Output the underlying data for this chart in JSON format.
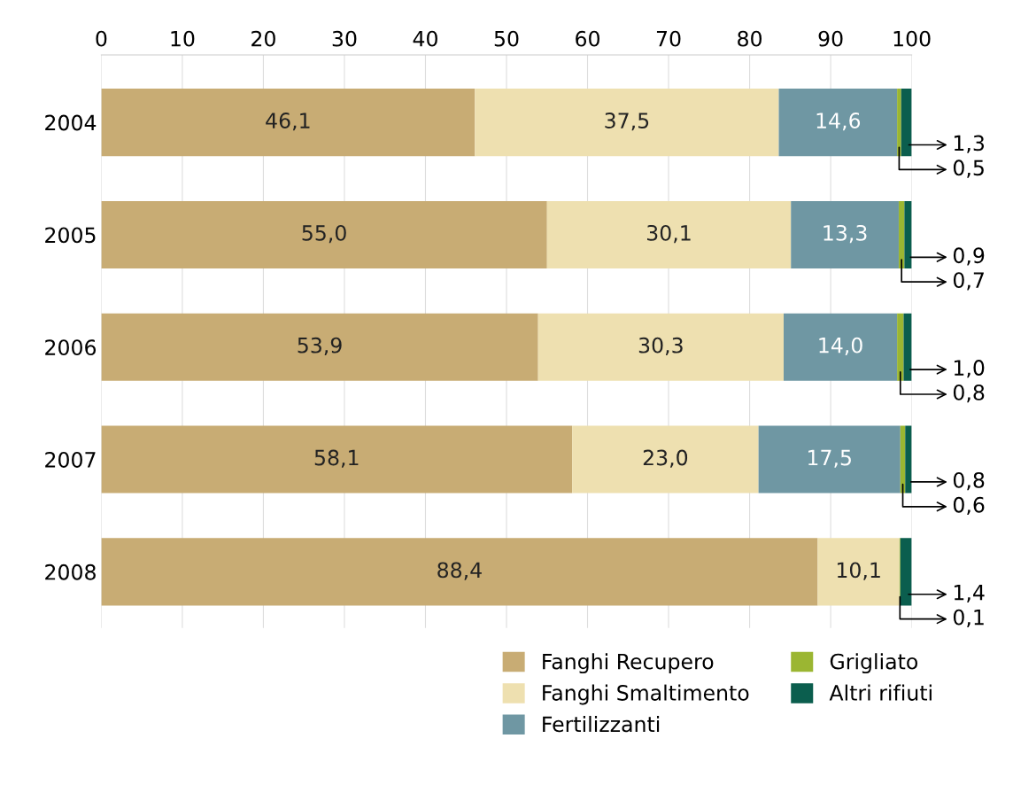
{
  "chart_data": {
    "type": "bar",
    "orientation": "horizontal",
    "stacked": true,
    "categories": [
      "2004",
      "2005",
      "2006",
      "2007",
      "2008"
    ],
    "series": [
      {
        "name": "Fanghi Recupero",
        "color": "#c8ac74",
        "values": [
          46.1,
          55.0,
          53.9,
          58.1,
          88.4
        ],
        "value_labels": [
          "46,1",
          "55,0",
          "53,9",
          "58,1",
          "88,4"
        ]
      },
      {
        "name": "Fanghi Smaltimento",
        "color": "#eee0b0",
        "values": [
          37.5,
          30.1,
          30.3,
          23.0,
          10.1
        ],
        "value_labels": [
          "37,5",
          "30,1",
          "30,3",
          "23,0",
          "10,1"
        ]
      },
      {
        "name": "Fertilizzanti",
        "color": "#6f97a3",
        "values": [
          14.6,
          13.3,
          14.0,
          17.5,
          null
        ],
        "value_labels": [
          "14,6",
          "13,3",
          "14,0",
          "17,5",
          null
        ]
      },
      {
        "name": "Grigliato",
        "color": "#9bb632",
        "values": [
          0.5,
          0.7,
          0.8,
          0.6,
          0.1
        ],
        "value_labels": [
          "0,5",
          "0,7",
          "0,8",
          "0,6",
          "0,1"
        ]
      },
      {
        "name": "Altri rifiuti",
        "color": "#0b5e4e",
        "values": [
          1.3,
          0.9,
          1.0,
          0.8,
          1.4
        ],
        "value_labels": [
          "1,3",
          "0,9",
          "1,0",
          "0,8",
          "1,4"
        ]
      }
    ],
    "xlim": [
      0,
      100
    ],
    "xticks": [
      0,
      10,
      20,
      30,
      40,
      50,
      60,
      70,
      80,
      90,
      100
    ],
    "grid": "x",
    "legend": "bottom right"
  }
}
